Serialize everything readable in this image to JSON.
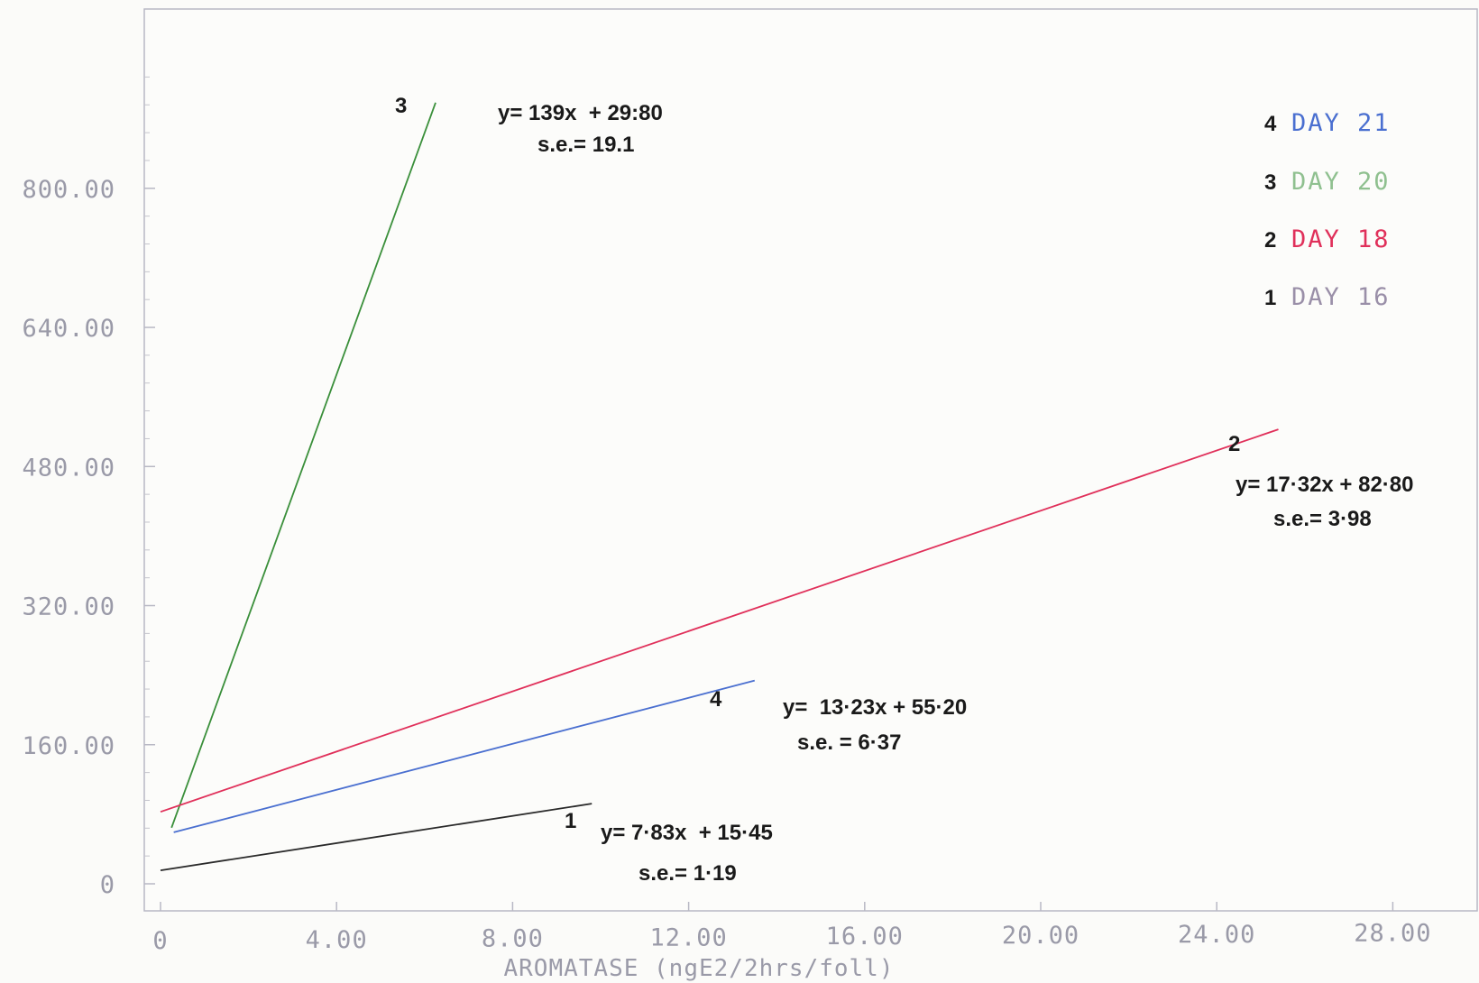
{
  "chart_data": {
    "type": "line",
    "xlabel": "AROMATASE (ngE2/2hrs/foll)",
    "ylabel": "",
    "title": "",
    "xlim": [
      0,
      28
    ],
    "ylim": [
      0,
      800
    ],
    "x_ticks": [
      "0",
      "4.00",
      "8.00",
      "12.00",
      "16.00",
      "20.00",
      "24.00",
      "28.00"
    ],
    "y_ticks": [
      "0",
      "160.00",
      "320.00",
      "480.00",
      "640.00",
      "800.00"
    ],
    "x_tick_values": [
      0,
      4,
      8,
      12,
      16,
      20,
      24,
      28
    ],
    "y_tick_values": [
      0,
      160,
      320,
      480,
      640,
      800
    ],
    "grid": false,
    "legend_position": "top-right",
    "series": [
      {
        "id": "4",
        "name": "DAY 21",
        "color": "#4a6fd0",
        "x": [
          0.3,
          13.5
        ],
        "y": [
          59.2,
          233.8
        ],
        "equation": "y=  13·23x + 55·20",
        "se": "s.e. = 6·37"
      },
      {
        "id": "3",
        "name": "DAY 20",
        "color": "#3a8f3a",
        "x": [
          0.25,
          6.25
        ],
        "y": [
          64.5,
          898.5
        ],
        "equation": "y= 139x  + 29:80",
        "se": "s.e.= 19.1"
      },
      {
        "id": "2",
        "name": "DAY 18",
        "color": "#e0305a",
        "x": [
          0.0,
          25.4
        ],
        "y": [
          82.8,
          522.7
        ],
        "equation": "y= 17·32x + 82·80",
        "se": "s.e.= 3·98"
      },
      {
        "id": "1",
        "name": "DAY 16",
        "color": "#2a2a2a",
        "x": [
          0.0,
          9.8
        ],
        "y": [
          15.45,
          92.2
        ],
        "equation": "y= 7·83x  + 15·45",
        "se": "s.e.= 1·19"
      }
    ],
    "legend_colors": {
      "4": "#4a6fd0",
      "3": "#8fc08f",
      "2": "#e0305a",
      "1": "#9a8fa8"
    }
  }
}
